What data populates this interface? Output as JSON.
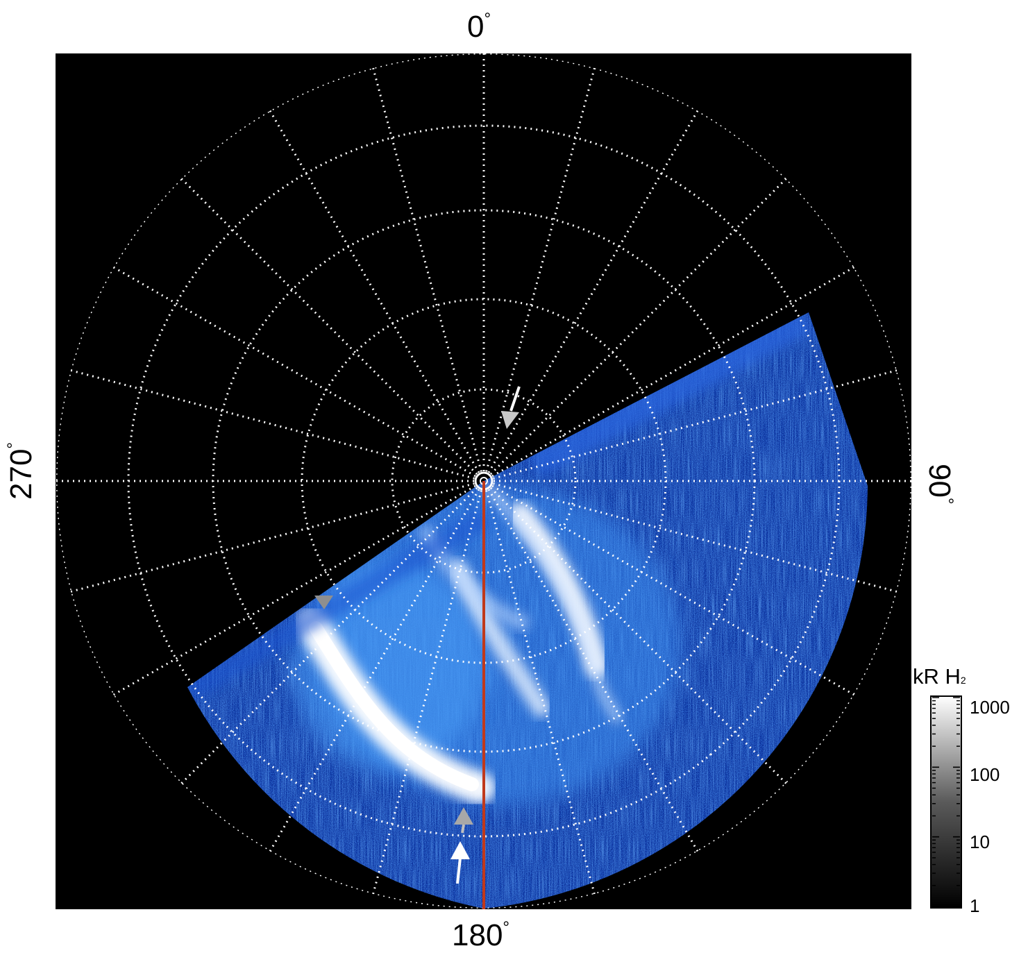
{
  "figure": {
    "orientation_labels": {
      "top": "0",
      "bottom": "180",
      "left": "270",
      "right": "90",
      "degree_symbol": "°"
    },
    "colorbar": {
      "title": "kR H",
      "title_subscript": "2",
      "ticks": [
        "1000",
        "100",
        "10",
        "1"
      ],
      "scale": "log",
      "colormap_colors": [
        "#000000",
        "#ffffff"
      ]
    },
    "colors": {
      "background": "#000000",
      "grid": "#ffffff",
      "aurora_dim": "#0a2a8a",
      "aurora_mid": "#1f6fe6",
      "aurora_bright": "#ffffff",
      "meridian_line": "#c0391b",
      "arrow_gray": "#9a9a9a",
      "arrow_white": "#ffffff"
    },
    "markers": [
      {
        "name": "arrow-near-pole",
        "color": "white"
      },
      {
        "name": "arrowhead-dawn-edge",
        "color": "gray"
      },
      {
        "name": "arrowhead-lower",
        "color": "gray"
      },
      {
        "name": "arrow-lower",
        "color": "white"
      }
    ]
  }
}
